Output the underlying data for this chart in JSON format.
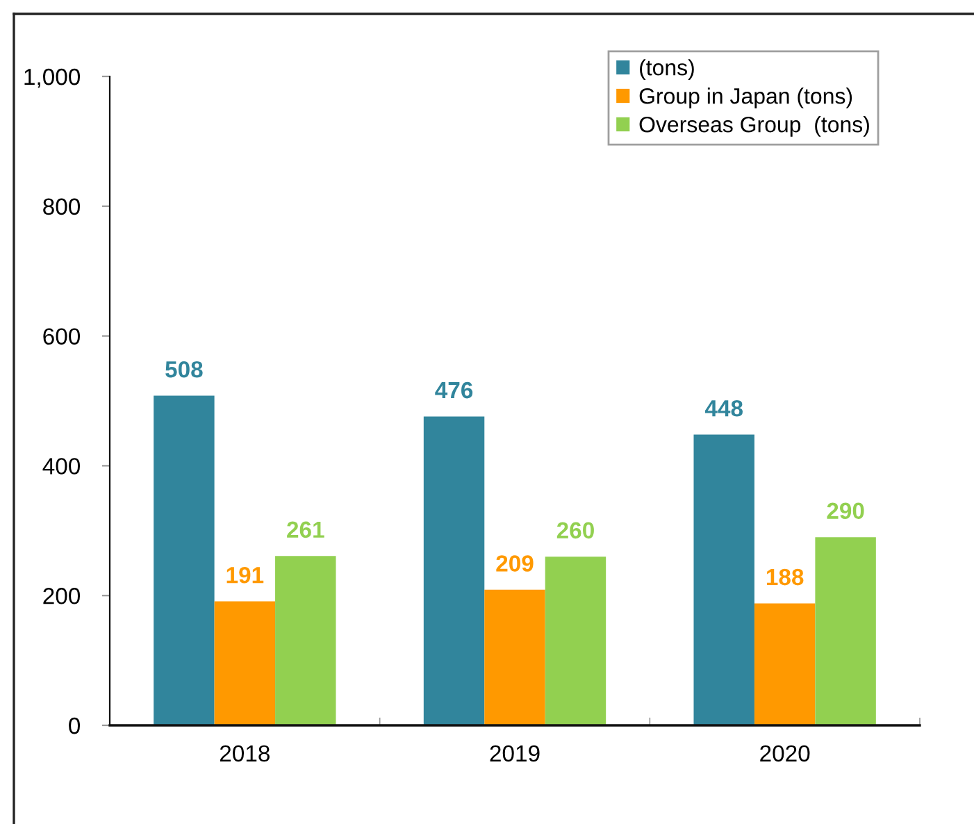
{
  "chart_data": {
    "type": "bar",
    "categories": [
      "2018",
      "2019",
      "2020"
    ],
    "series": [
      {
        "name": "(tons)",
        "color": "#31859c",
        "values": [
          508,
          476,
          448
        ]
      },
      {
        "name": "Group in Japan (tons)",
        "color": "#ff9900",
        "values": [
          191,
          209,
          188
        ]
      },
      {
        "name": "Overseas Group  (tons)",
        "color": "#92d050",
        "values": [
          261,
          260,
          290
        ]
      }
    ],
    "ylim": [
      0,
      1000
    ],
    "yticks": [
      0,
      200,
      400,
      600,
      800,
      {
        "value": 1000,
        "label": "1,000"
      }
    ],
    "data_labels": true,
    "legend": "top right"
  }
}
